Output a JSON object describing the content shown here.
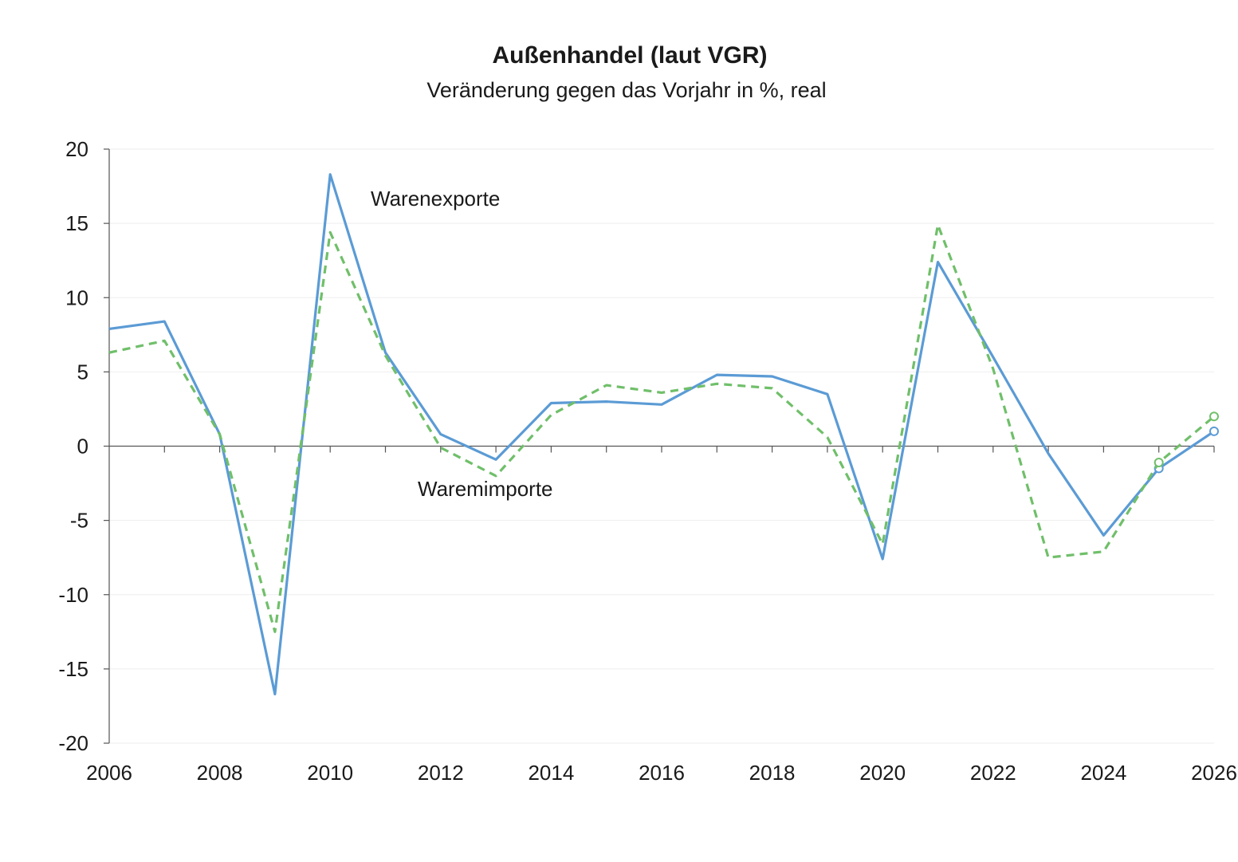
{
  "chart_data": {
    "type": "line",
    "title": "Außenhandel (laut VGR)",
    "subtitle": "Veränderung gegen das Vorjahr in %, real",
    "xlabel": "",
    "ylabel": "",
    "xlim": [
      2006,
      2026
    ],
    "ylim": [
      -20,
      20
    ],
    "x_ticks": [
      "2006",
      "2008",
      "2010",
      "2012",
      "2014",
      "2016",
      "2018",
      "2020",
      "2022",
      "2024",
      "2026"
    ],
    "y_ticks": [
      "20",
      "15",
      "10",
      "5",
      "0",
      "-5",
      "-10",
      "-15",
      "-20"
    ],
    "grid": true,
    "legend": "none",
    "x": [
      2006,
      2007,
      2008,
      2009,
      2010,
      2011,
      2012,
      2013,
      2014,
      2015,
      2016,
      2017,
      2018,
      2019,
      2020,
      2021,
      2022,
      2023,
      2024,
      2025,
      2026
    ],
    "forecast_from": 2025,
    "series": [
      {
        "name": "Warenexporte",
        "color": "#5b9bd5",
        "style": "solid",
        "values": [
          7.9,
          8.4,
          0.8,
          -16.7,
          18.3,
          6.3,
          0.8,
          -0.9,
          2.9,
          3.0,
          2.8,
          4.8,
          4.7,
          3.5,
          -7.6,
          12.4,
          6.0,
          -0.5,
          -6.0,
          -1.5,
          1.0
        ]
      },
      {
        "name": "Waremimporte",
        "color": "#70bf6a",
        "style": "dashed",
        "values": [
          6.3,
          7.1,
          0.8,
          -12.5,
          14.4,
          6.1,
          -0.1,
          -2.0,
          2.1,
          4.1,
          3.6,
          4.2,
          3.9,
          0.6,
          -6.6,
          14.9,
          5.2,
          -7.5,
          -7.1,
          -1.1,
          2.0
        ]
      }
    ]
  }
}
